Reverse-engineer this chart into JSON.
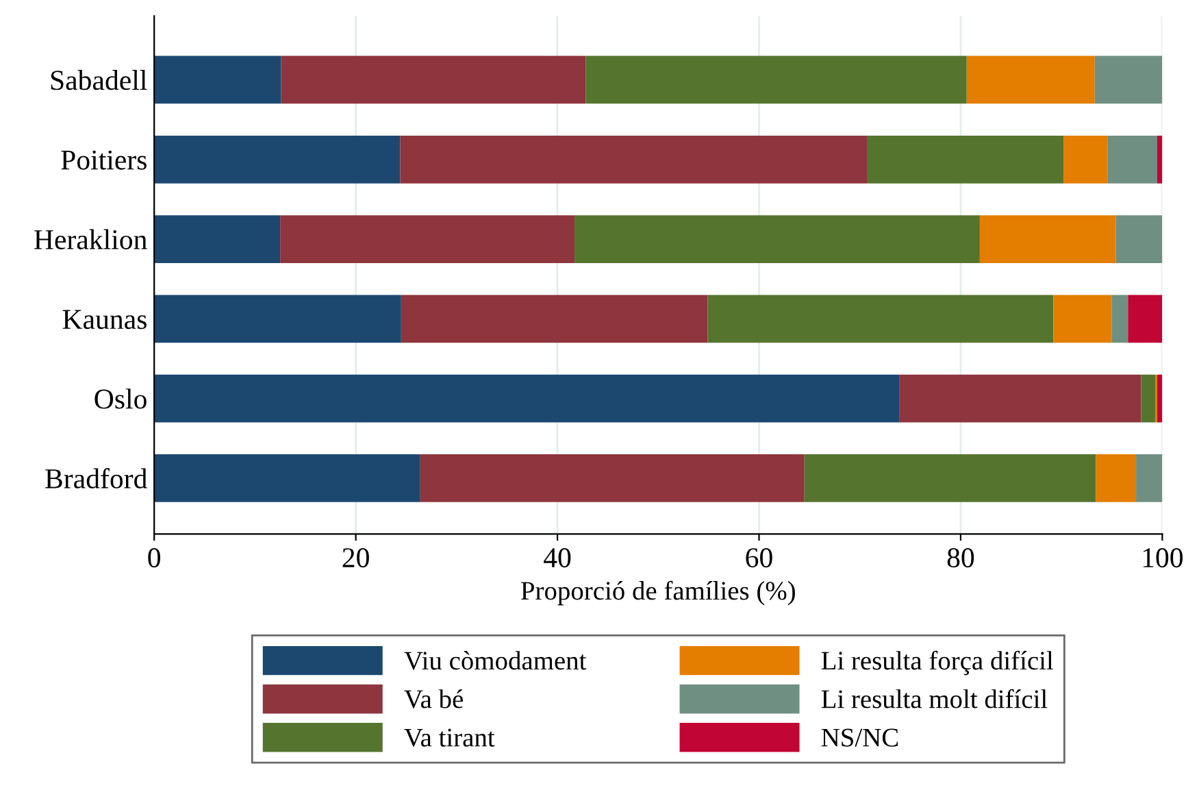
{
  "chart_data": {
    "type": "bar",
    "orientation": "horizontal",
    "stacked": true,
    "xlabel": "Proporció de famílies (%)",
    "categories": [
      "Sabadell",
      "Poitiers",
      "Heraklion",
      "Kaunas",
      "Oslo",
      "Bradford"
    ],
    "series": [
      {
        "name": "Viu còmodament",
        "color": "#1c4870",
        "values": [
          12.6,
          24.4,
          12.5,
          24.5,
          73.9,
          26.4
        ]
      },
      {
        "name": "Va bé",
        "color": "#8e353d",
        "values": [
          30.2,
          46.3,
          29.2,
          30.4,
          24.0,
          38.1
        ]
      },
      {
        "name": "Va tirant",
        "color": "#55752f",
        "values": [
          37.8,
          19.5,
          40.2,
          34.3,
          1.4,
          28.9
        ]
      },
      {
        "name": "Li resulta força difícil",
        "color": "#e37e00",
        "values": [
          12.7,
          4.4,
          13.5,
          5.8,
          0.2,
          4.0
        ]
      },
      {
        "name": "Li resulta molt difícil",
        "color": "#6f8f82",
        "values": [
          6.7,
          4.9,
          4.6,
          1.6,
          0,
          2.6
        ]
      },
      {
        "name": "NS/NC",
        "color": "#c10534",
        "values": [
          0,
          0.5,
          0,
          3.4,
          0.5,
          0
        ]
      }
    ],
    "xlim": [
      0,
      100
    ],
    "xticks": [
      0,
      20,
      40,
      60,
      80,
      100
    ],
    "grid": "x",
    "legend": "bottom"
  }
}
